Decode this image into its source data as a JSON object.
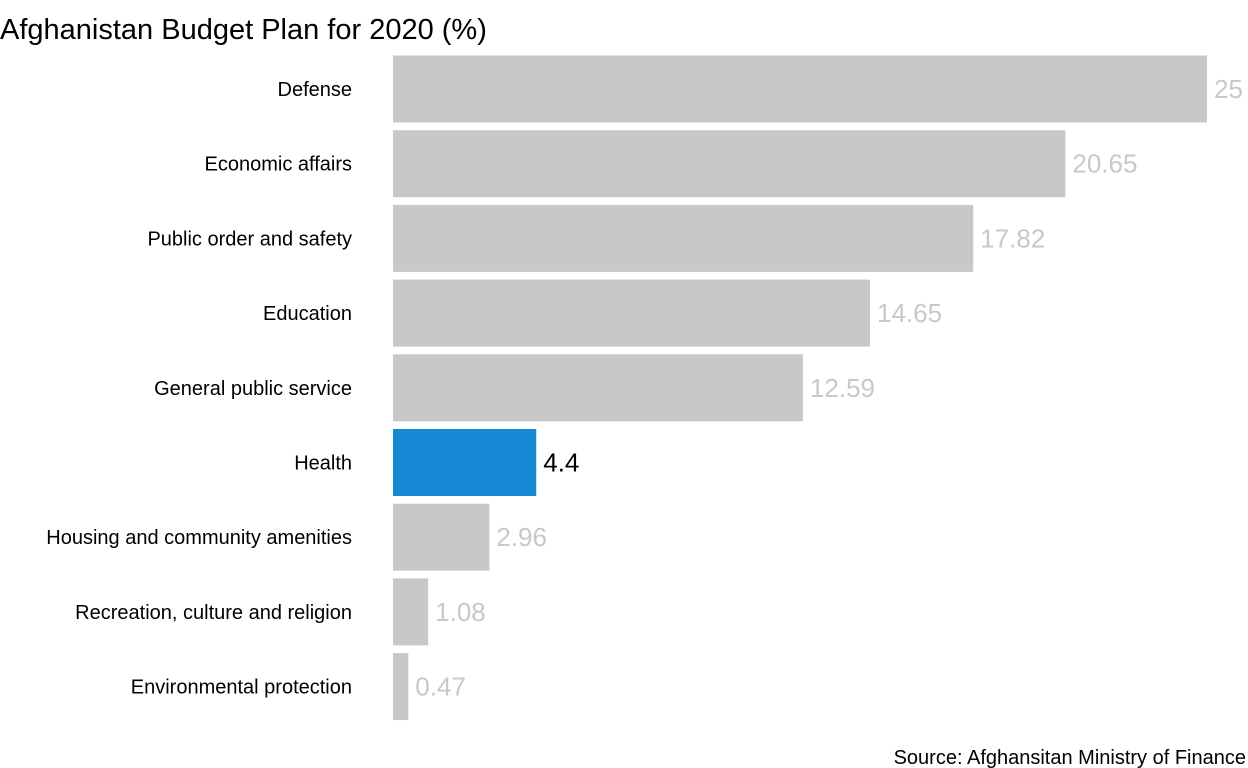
{
  "chart_data": {
    "type": "bar",
    "orientation": "horizontal",
    "title": "Afghanistan Budget Plan for 2020 (%)",
    "categories": [
      "Defense",
      "Economic affairs",
      "Public order and safety",
      "Education",
      "General public service",
      "Health",
      "Housing and community amenities",
      "Recreation, culture and religion",
      "Environmental protection"
    ],
    "values": [
      25,
      20.65,
      17.82,
      14.65,
      12.59,
      4.4,
      2.96,
      1.08,
      0.47
    ],
    "value_labels": [
      "25",
      "20.65",
      "17.82",
      "14.65",
      "12.59",
      "4.4",
      "2.96",
      "1.08",
      "0.47"
    ],
    "highlight_category": "Health",
    "xlim": [
      0,
      25
    ],
    "grid": false,
    "legend": "none",
    "colors": {
      "bar": "#c8c8c8",
      "highlight_bar": "#1589d4",
      "label": "#c8c8c8",
      "highlight_label": "#000000",
      "text": "#000000"
    },
    "source": "Source: Afghansitan Ministry of Finance"
  }
}
